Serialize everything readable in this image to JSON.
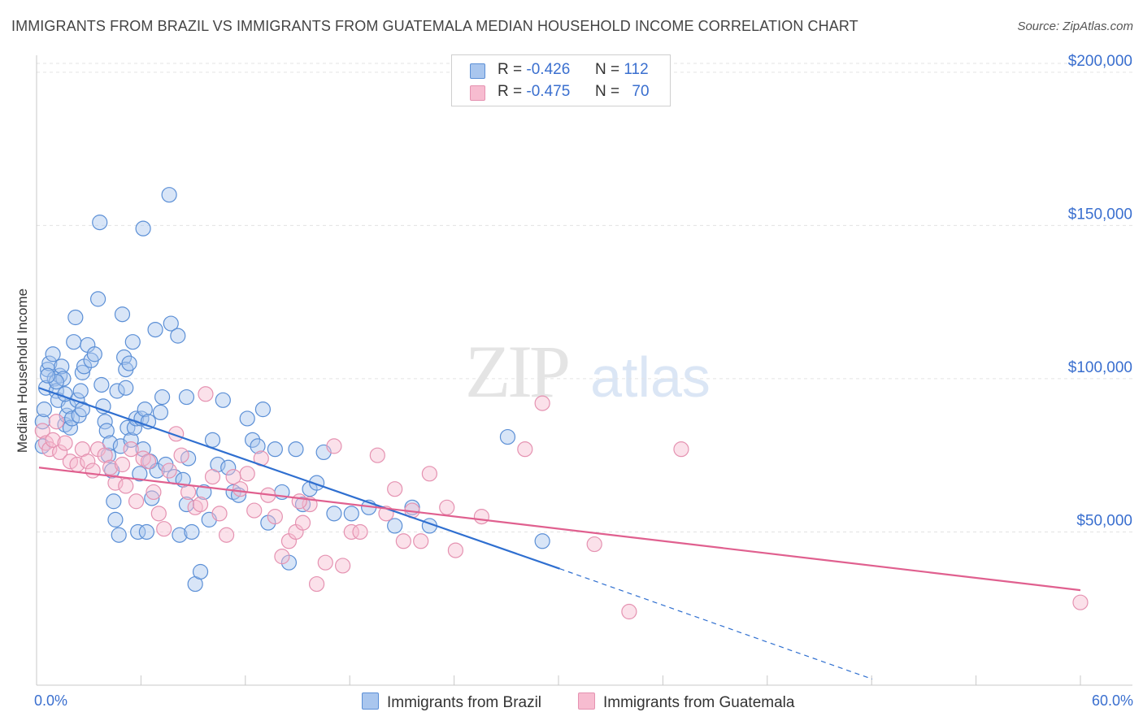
{
  "title": "IMMIGRANTS FROM BRAZIL VS IMMIGRANTS FROM GUATEMALA MEDIAN HOUSEHOLD INCOME CORRELATION CHART",
  "source": "Source: ZipAtlas.com",
  "watermark": {
    "zip": "ZIP",
    "atlas": "atlas"
  },
  "legend": {
    "brazil": {
      "r_label": "R =",
      "r_value": "-0.426",
      "n_label": "N =",
      "n_value": "112"
    },
    "guatemala": {
      "r_label": "R =",
      "r_value": "-0.475",
      "n_label": "N =",
      "n_value": "70"
    }
  },
  "chart_data": {
    "type": "scatter",
    "title": "IMMIGRANTS FROM BRAZIL VS IMMIGRANTS FROM GUATEMALA MEDIAN HOUSEHOLD INCOME CORRELATION CHART",
    "xlabel": "",
    "ylabel": "Median Household Income",
    "x_tick_labels": [
      "0.0%",
      "60.0%"
    ],
    "y_tick_labels": [
      "$50,000",
      "$100,000",
      "$150,000",
      "$200,000"
    ],
    "y_ticks": [
      50000,
      100000,
      150000,
      200000
    ],
    "xlim": [
      0,
      60
    ],
    "ylim": [
      0,
      205000
    ],
    "grid": true,
    "legend_position": "top-center",
    "colors": {
      "brazil_fill": "#a9c6ee",
      "brazil_stroke": "#5b8fd6",
      "brazil_line": "#2f6fd0",
      "guatemala_fill": "#f7bcd0",
      "guatemala_stroke": "#e592b1",
      "guatemala_line": "#e0608f",
      "axis_text": "#3a6fcf"
    },
    "series": [
      {
        "name": "Immigrants from Brazil",
        "r": -0.426,
        "n": 112,
        "trend": {
          "x1": 0.0,
          "y1": 97000,
          "x2": 30.0,
          "y2": 38000,
          "dashed_to_x": 48.0,
          "dashed_to_y": 2000
        },
        "points": [
          [
            0.2,
            86000
          ],
          [
            0.3,
            90000
          ],
          [
            0.2,
            78000
          ],
          [
            0.4,
            97000
          ],
          [
            0.5,
            103000
          ],
          [
            0.6,
            105000
          ],
          [
            0.8,
            108000
          ],
          [
            0.9,
            100000
          ],
          [
            1.0,
            96000
          ],
          [
            1.1,
            93000
          ],
          [
            1.2,
            101000
          ],
          [
            1.3,
            104000
          ],
          [
            1.4,
            100000
          ],
          [
            1.5,
            85000
          ],
          [
            1.6,
            88000
          ],
          [
            1.7,
            91000
          ],
          [
            1.8,
            84000
          ],
          [
            1.9,
            87000
          ],
          [
            2.0,
            112000
          ],
          [
            2.1,
            120000
          ],
          [
            2.2,
            93000
          ],
          [
            2.3,
            88000
          ],
          [
            2.4,
            96000
          ],
          [
            2.5,
            102000
          ],
          [
            2.6,
            104000
          ],
          [
            2.8,
            111000
          ],
          [
            3.0,
            106000
          ],
          [
            3.2,
            108000
          ],
          [
            3.4,
            126000
          ],
          [
            3.6,
            98000
          ],
          [
            3.7,
            91000
          ],
          [
            3.8,
            86000
          ],
          [
            3.9,
            83000
          ],
          [
            4.0,
            75000
          ],
          [
            4.1,
            79000
          ],
          [
            4.2,
            70000
          ],
          [
            4.3,
            60000
          ],
          [
            4.4,
            54000
          ],
          [
            4.5,
            96000
          ],
          [
            4.6,
            49000
          ],
          [
            4.7,
            78000
          ],
          [
            4.8,
            121000
          ],
          [
            4.9,
            107000
          ],
          [
            5.0,
            103000
          ],
          [
            5.1,
            84000
          ],
          [
            5.2,
            105000
          ],
          [
            5.3,
            80000
          ],
          [
            5.4,
            112000
          ],
          [
            5.5,
            84000
          ],
          [
            5.6,
            87000
          ],
          [
            5.7,
            50000
          ],
          [
            5.8,
            69000
          ],
          [
            5.9,
            87000
          ],
          [
            6.0,
            77000
          ],
          [
            6.1,
            90000
          ],
          [
            6.2,
            50000
          ],
          [
            6.3,
            86000
          ],
          [
            6.4,
            73000
          ],
          [
            6.5,
            61000
          ],
          [
            6.7,
            116000
          ],
          [
            6.8,
            70000
          ],
          [
            7.0,
            89000
          ],
          [
            7.1,
            94000
          ],
          [
            7.3,
            72000
          ],
          [
            7.5,
            160000
          ],
          [
            7.6,
            118000
          ],
          [
            7.8,
            68000
          ],
          [
            8.0,
            114000
          ],
          [
            8.1,
            49000
          ],
          [
            8.3,
            67000
          ],
          [
            8.5,
            59000
          ],
          [
            8.6,
            74000
          ],
          [
            8.8,
            50000
          ],
          [
            9.0,
            33000
          ],
          [
            9.3,
            37000
          ],
          [
            9.5,
            63000
          ],
          [
            9.8,
            54000
          ],
          [
            10.0,
            80000
          ],
          [
            10.3,
            72000
          ],
          [
            10.6,
            93000
          ],
          [
            10.9,
            71000
          ],
          [
            11.2,
            63000
          ],
          [
            11.5,
            62000
          ],
          [
            12.0,
            87000
          ],
          [
            12.3,
            80000
          ],
          [
            12.6,
            78000
          ],
          [
            12.9,
            90000
          ],
          [
            13.2,
            53000
          ],
          [
            13.6,
            77000
          ],
          [
            14.0,
            63000
          ],
          [
            14.4,
            40000
          ],
          [
            14.8,
            77000
          ],
          [
            15.2,
            59000
          ],
          [
            15.6,
            64000
          ],
          [
            16.0,
            66000
          ],
          [
            16.4,
            76000
          ],
          [
            17.0,
            56000
          ],
          [
            18.0,
            56000
          ],
          [
            19.0,
            58000
          ],
          [
            20.5,
            52000
          ],
          [
            21.5,
            58000
          ],
          [
            22.5,
            52000
          ],
          [
            27.0,
            81000
          ],
          [
            29.0,
            47000
          ],
          [
            3.5,
            151000
          ],
          [
            6.0,
            149000
          ],
          [
            5.0,
            97000
          ],
          [
            2.5,
            90000
          ],
          [
            1.0,
            99000
          ],
          [
            0.5,
            101000
          ],
          [
            1.5,
            95000
          ],
          [
            8.5,
            94000
          ]
        ]
      },
      {
        "name": "Immigrants from Guatemala",
        "r": -0.475,
        "n": 70,
        "trend": {
          "x1": 0.0,
          "y1": 71000,
          "x2": 60.0,
          "y2": 31000
        },
        "points": [
          [
            0.2,
            83000
          ],
          [
            0.4,
            79000
          ],
          [
            0.6,
            77000
          ],
          [
            0.8,
            80000
          ],
          [
            1.0,
            86000
          ],
          [
            1.2,
            76000
          ],
          [
            1.5,
            79000
          ],
          [
            1.8,
            73000
          ],
          [
            2.2,
            72000
          ],
          [
            2.5,
            77000
          ],
          [
            2.8,
            73000
          ],
          [
            3.1,
            70000
          ],
          [
            3.4,
            77000
          ],
          [
            3.8,
            75000
          ],
          [
            4.1,
            71000
          ],
          [
            4.4,
            66000
          ],
          [
            4.8,
            72000
          ],
          [
            5.0,
            65000
          ],
          [
            5.3,
            77000
          ],
          [
            5.6,
            60000
          ],
          [
            6.0,
            74000
          ],
          [
            6.3,
            73000
          ],
          [
            6.6,
            63000
          ],
          [
            6.9,
            56000
          ],
          [
            7.2,
            51000
          ],
          [
            7.5,
            70000
          ],
          [
            7.9,
            82000
          ],
          [
            8.2,
            75000
          ],
          [
            8.6,
            63000
          ],
          [
            9.0,
            58000
          ],
          [
            9.3,
            59000
          ],
          [
            9.6,
            95000
          ],
          [
            10.0,
            68000
          ],
          [
            10.4,
            56000
          ],
          [
            10.8,
            49000
          ],
          [
            11.2,
            68000
          ],
          [
            11.6,
            64000
          ],
          [
            12.0,
            69000
          ],
          [
            12.4,
            57000
          ],
          [
            12.8,
            74000
          ],
          [
            13.2,
            62000
          ],
          [
            13.6,
            55000
          ],
          [
            14.0,
            42000
          ],
          [
            14.4,
            47000
          ],
          [
            14.8,
            50000
          ],
          [
            15.2,
            53000
          ],
          [
            15.6,
            59000
          ],
          [
            16.0,
            33000
          ],
          [
            16.5,
            40000
          ],
          [
            17.0,
            78000
          ],
          [
            17.5,
            39000
          ],
          [
            18.0,
            50000
          ],
          [
            18.5,
            50000
          ],
          [
            19.5,
            75000
          ],
          [
            20.0,
            56000
          ],
          [
            20.5,
            64000
          ],
          [
            21.0,
            47000
          ],
          [
            21.5,
            57000
          ],
          [
            22.0,
            47000
          ],
          [
            22.5,
            69000
          ],
          [
            23.5,
            58000
          ],
          [
            24.0,
            44000
          ],
          [
            25.5,
            55000
          ],
          [
            29.0,
            92000
          ],
          [
            28.0,
            77000
          ],
          [
            32.0,
            46000
          ],
          [
            34.0,
            24000
          ],
          [
            37.0,
            77000
          ],
          [
            60.0,
            27000
          ],
          [
            15.0,
            60000
          ]
        ]
      }
    ]
  },
  "bottom_legend": {
    "brazil_label": "Immigrants from Brazil",
    "guatemala_label": "Immigrants from Guatemala"
  }
}
